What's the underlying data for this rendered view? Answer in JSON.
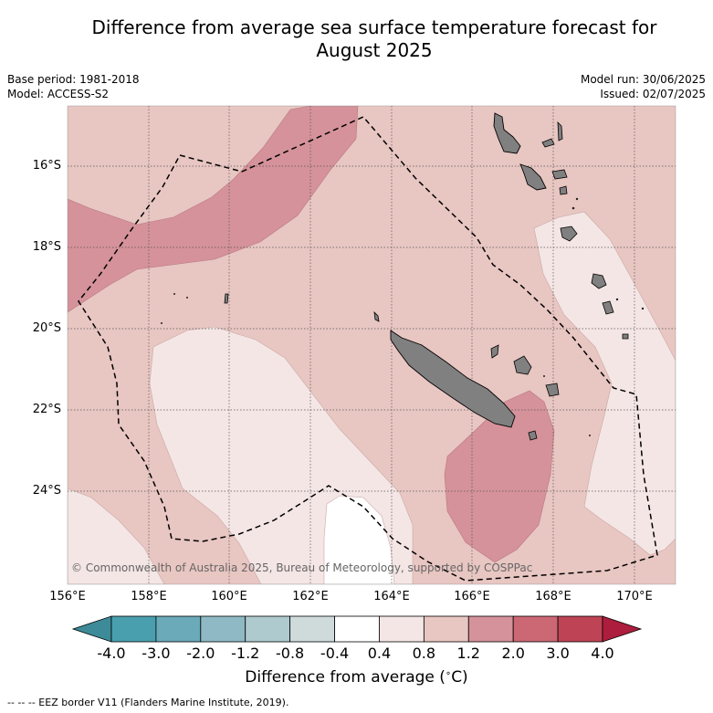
{
  "title_line1": "Difference from average sea surface temperature forecast for",
  "title_line2": "August 2025",
  "base_period": "Base period: 1981-2018",
  "model": "Model: ACCESS-S2",
  "model_run": "Model run: 30/06/2025",
  "issued": "Issued: 02/07/2025",
  "copyright": "© Commonwealth of Australia 2025, Bureau of Meteorology, supported by COSPPac",
  "latitude_labels": [
    "16°S",
    "18°S",
    "20°S",
    "22°S",
    "24°S"
  ],
  "longitude_labels": [
    "156°E",
    "158°E",
    "160°E",
    "162°E",
    "164°E",
    "166°E",
    "168°E",
    "170°E"
  ],
  "colorbar": {
    "ticks": [
      "-4.0",
      "-3.0",
      "-2.0",
      "-1.2",
      "-0.8",
      "-0.4",
      "0.4",
      "0.8",
      "1.2",
      "2.0",
      "3.0",
      "4.0"
    ],
    "colors": [
      "#4a9fae",
      "#6aaab9",
      "#8fbac5",
      "#aecacf",
      "#cfdadb",
      "#ffffff",
      "#f4e6e5",
      "#e8c6c2",
      "#d5929a",
      "#cb6874",
      "#be4455"
    ],
    "under_color": "#3d8b99",
    "over_color": "#ad1d3d",
    "label": "Difference from average ($^\\circ$C)"
  },
  "legend_footer": "--  --  -- EEZ border V11 (Flanders Marine Institute, 2019).",
  "colors": {
    "anomaly_0_4_to_0_8": "#f4e6e5",
    "anomaly_0_8_to_1_2": "#e8c6c2",
    "anomaly_1_2_to_2_0": "#d5929a",
    "land": "#808080"
  }
}
